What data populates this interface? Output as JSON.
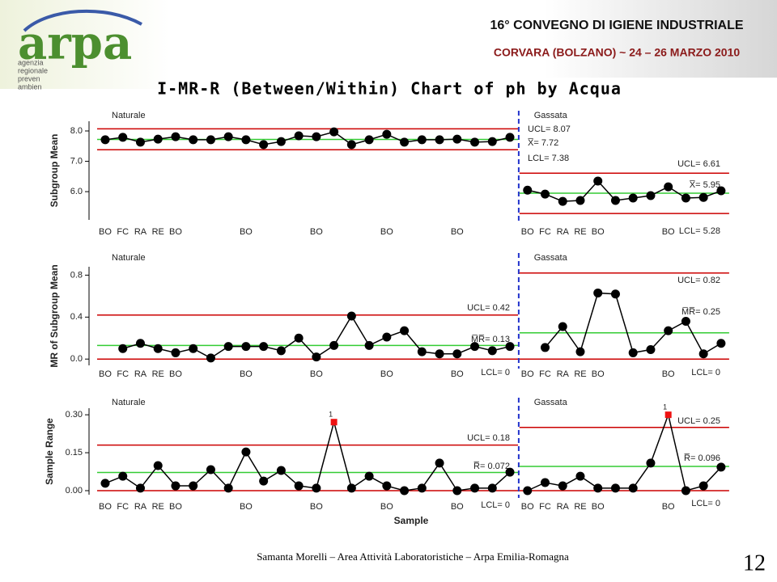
{
  "header": {
    "logo": "arpa",
    "logo_lines": [
      "agenzia",
      "regionale",
      "preven",
      "ambien"
    ],
    "conference": "16° CONVEGNO DI IGIENE INDUSTRIALE",
    "venue": "CORVARA (BOLZANO) ~ 24 – 26 MARZO 2010"
  },
  "title": "I-MR-R (Between/Within) Chart of ph by Acqua",
  "chart_data": [
    {
      "type": "line",
      "ylabel": "Subgroup Mean",
      "ylim": [
        5.07,
        8.32
      ],
      "yticks": [
        {
          "value": 6,
          "label": "6.0"
        },
        {
          "value": 7,
          "label": "7.0"
        },
        {
          "value": 8,
          "label": "8.0"
        }
      ],
      "color": "#000000",
      "center_color": "#33cc33",
      "limit_color": "#cc0000",
      "flag_color": "#ee1111",
      "stage_line_color": "#2233cc",
      "stages": [
        {
          "name": "Naturale",
          "categories": [
            "BO",
            "FC",
            "RA",
            "RE",
            "BO",
            null,
            null,
            null,
            "BO",
            null,
            null,
            null,
            "BO",
            null,
            null,
            null,
            "BO",
            null,
            null,
            null,
            "BO",
            null,
            null,
            null
          ],
          "values": [
            7.71,
            7.79,
            7.63,
            7.73,
            7.81,
            7.71,
            7.71,
            7.81,
            7.71,
            7.55,
            7.65,
            7.84,
            7.81,
            7.97,
            7.55,
            7.71,
            7.89,
            7.63,
            7.71,
            7.71,
            7.73,
            7.63,
            7.65,
            7.79
          ],
          "ucl": {
            "value": 8.07,
            "label": "UCL= 8.07"
          },
          "center": {
            "value": 7.72,
            "label": "X̅= 7.72"
          },
          "lcl": {
            "value": 7.38,
            "label": "LCL= 7.38"
          }
        },
        {
          "name": "Gassata",
          "categories": [
            "BO",
            "FC",
            "RA",
            "RE",
            "BO",
            null,
            null,
            null,
            "BO",
            null,
            null,
            null
          ],
          "values": [
            6.05,
            5.92,
            5.68,
            5.71,
            6.35,
            5.71,
            5.79,
            5.87,
            6.16,
            5.79,
            5.81,
            6.03
          ],
          "ucl": {
            "value": 6.61,
            "label": "UCL= 6.61"
          },
          "center": {
            "value": 5.95,
            "label": "X̅= 5.95"
          },
          "lcl": {
            "value": 5.28,
            "label": "LCL= 5.28"
          }
        }
      ]
    },
    {
      "type": "line",
      "ylabel": "MR of Subgroup Mean",
      "ylim": [
        -0.06,
        0.88
      ],
      "yticks": [
        {
          "value": 0,
          "label": "0.0"
        },
        0.4,
        0.8
      ],
      "color": "#000000",
      "center_color": "#33cc33",
      "limit_color": "#cc0000",
      "flag_color": "#ee1111",
      "stage_line_color": "#2233cc",
      "stages": [
        {
          "name": "Naturale",
          "categories": [
            "BO",
            "FC",
            "RA",
            "RE",
            "BO",
            null,
            null,
            null,
            "BO",
            null,
            null,
            null,
            "BO",
            null,
            null,
            null,
            "BO",
            null,
            null,
            null,
            "BO",
            null,
            null,
            null
          ],
          "values": [
            null,
            0.1,
            0.15,
            0.1,
            0.06,
            0.1,
            0.01,
            0.12,
            0.12,
            0.12,
            0.08,
            0.2,
            0.02,
            0.13,
            0.41,
            0.13,
            0.21,
            0.27,
            0.07,
            0.05,
            0.05,
            0.12,
            0.08,
            0.12
          ],
          "ucl": {
            "value": 0.42,
            "label": "UCL= 0.42"
          },
          "center": {
            "value": 0.13,
            "label": "M̅R̅= 0.13"
          },
          "lcl": {
            "value": 0,
            "label": "LCL= 0"
          }
        },
        {
          "name": "Gassata",
          "categories": [
            "BO",
            "FC",
            "RA",
            "RE",
            "BO",
            null,
            null,
            null,
            "BO",
            null,
            null,
            null
          ],
          "values": [
            null,
            0.11,
            0.31,
            0.07,
            0.63,
            0.62,
            0.06,
            0.09,
            0.27,
            0.36,
            0.05,
            0.15
          ],
          "ucl": {
            "value": 0.82,
            "label": "UCL= 0.82"
          },
          "center": {
            "value": 0.25,
            "label": "M̅R̅= 0.25"
          },
          "lcl": {
            "value": 0,
            "label": "LCL= 0"
          }
        }
      ]
    },
    {
      "type": "line",
      "ylabel": "Sample Range",
      "xlabel": "Sample",
      "ylim": [
        -0.016,
        0.326
      ],
      "yticks": [
        {
          "value": 0,
          "label": "0.00"
        },
        0.15,
        {
          "value": 0.3,
          "label": "0.30"
        }
      ],
      "color": "#000000",
      "center_color": "#33cc33",
      "limit_color": "#cc0000",
      "flag_color": "#ee1111",
      "stage_line_color": "#2233cc",
      "stages": [
        {
          "name": "Naturale",
          "categories": [
            "BO",
            "FC",
            "RA",
            "RE",
            "BO",
            null,
            null,
            null,
            "BO",
            null,
            null,
            null,
            "BO",
            null,
            null,
            null,
            "BO",
            null,
            null,
            null,
            "BO",
            null,
            null,
            null
          ],
          "values": [
            0.029,
            0.057,
            0.01,
            0.099,
            0.019,
            0.019,
            0.083,
            0.01,
            0.153,
            0.038,
            0.08,
            0.019,
            0.01,
            0.271,
            0.01,
            0.057,
            0.019,
            0.0,
            0.01,
            0.109,
            0.0,
            0.01,
            0.01,
            0.073
          ],
          "point_labels": [
            null,
            null,
            null,
            null,
            null,
            null,
            null,
            null,
            null,
            null,
            null,
            null,
            null,
            "1",
            null,
            null,
            null,
            null,
            null,
            null,
            null,
            null,
            null,
            null
          ],
          "ucl": {
            "value": 0.18,
            "label": "UCL= 0.18"
          },
          "center": {
            "value": 0.072,
            "label": "R̅= 0.072"
          },
          "lcl": {
            "value": 0,
            "label": "LCL= 0"
          }
        },
        {
          "name": "Gassata",
          "categories": [
            "BO",
            "FC",
            "RA",
            "RE",
            "BO",
            null,
            null,
            null,
            "BO",
            null,
            null,
            null
          ],
          "values": [
            0.0,
            0.032,
            0.019,
            0.057,
            0.01,
            0.01,
            0.01,
            0.109,
            0.3,
            0.0,
            0.019,
            0.093
          ],
          "point_labels": [
            null,
            null,
            null,
            null,
            null,
            null,
            null,
            null,
            "1",
            null,
            null,
            null
          ],
          "ucl": {
            "value": 0.25,
            "label": "UCL= 0.25"
          },
          "center": {
            "value": 0.096,
            "label": "R̅= 0.096"
          },
          "lcl": {
            "value": 0,
            "label": "LCL= 0"
          }
        }
      ]
    }
  ],
  "footer": {
    "author": "Samanta Morelli – Area Attività Laboratoristiche – Arpa Emilia-Romagna",
    "page": "12"
  }
}
